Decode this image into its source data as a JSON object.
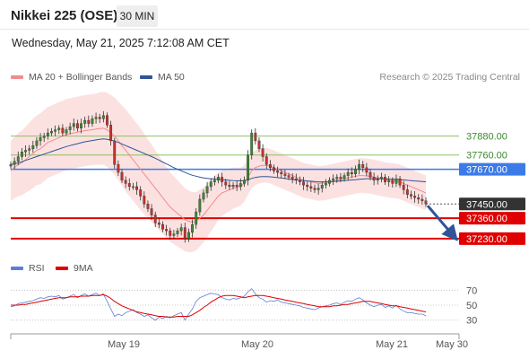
{
  "header": {
    "title": "Nikkei 225 (OSE)",
    "interval": "30 MIN",
    "datetime": "Wednesday, May 21, 2025 7:12:08 AM CET"
  },
  "legend": {
    "ma20_label": "MA 20 + Bollinger Bands",
    "ma20_color": "#f08c8c",
    "ma50_label": "MA 50",
    "ma50_color": "#2f5597",
    "copyright": "Research © 2025 Trading Central"
  },
  "rsi_legend": {
    "rsi_label": "RSI",
    "rsi_color": "#5b7fd6",
    "ma_label": "9MA",
    "ma_color": "#e00000"
  },
  "chart_data": [
    {
      "type": "candlestick",
      "price_range": [
        37150,
        38060
      ],
      "levels": [
        {
          "value": 37880,
          "label": "37880.00",
          "kind": "resistance",
          "color": "#8cc063"
        },
        {
          "value": 37760,
          "label": "37760.00",
          "kind": "resistance",
          "color": "#8cc063"
        },
        {
          "value": 37670,
          "label": "37670.00",
          "kind": "pivot",
          "color": "#3b7be8"
        },
        {
          "value": 37450,
          "label": "37450.00",
          "kind": "last",
          "color": "#333333"
        },
        {
          "value": 37360,
          "label": "37360.00",
          "kind": "support",
          "color": "#e00000"
        },
        {
          "value": 37230,
          "label": "37230.00",
          "kind": "support",
          "color": "#e00000"
        }
      ],
      "close": [
        37700,
        37720,
        37750,
        37780,
        37790,
        37800,
        37820,
        37850,
        37870,
        37880,
        37900,
        37910,
        37920,
        37930,
        37900,
        37920,
        37940,
        37960,
        37930,
        37960,
        37980,
        37960,
        37990,
        38000,
        37990,
        38010,
        37950,
        37850,
        37700,
        37650,
        37600,
        37580,
        37560,
        37560,
        37540,
        37500,
        37450,
        37420,
        37380,
        37330,
        37320,
        37290,
        37280,
        37250,
        37260,
        37280,
        37300,
        37230,
        37270,
        37320,
        37400,
        37480,
        37520,
        37560,
        37590,
        37600,
        37620,
        37590,
        37570,
        37560,
        37570,
        37560,
        37580,
        37600,
        37760,
        37900,
        37850,
        37800,
        37750,
        37700,
        37680,
        37660,
        37650,
        37640,
        37630,
        37620,
        37610,
        37600,
        37590,
        37570,
        37560,
        37550,
        37540,
        37550,
        37570,
        37580,
        37600,
        37610,
        37620,
        37610,
        37630,
        37650,
        37640,
        37670,
        37700,
        37680,
        37650,
        37620,
        37600,
        37610,
        37620,
        37590,
        37600,
        37580,
        37610,
        37570,
        37540,
        37510,
        37500,
        37490,
        37480,
        37470,
        37450
      ],
      "ma20": [
        37660,
        37680,
        37700,
        37710,
        37730,
        37750,
        37770,
        37790,
        37800,
        37820,
        37840,
        37850,
        37860,
        37870,
        37880,
        37890,
        37895,
        37900,
        37905,
        37910,
        37915,
        37918,
        37920,
        37925,
        37928,
        37930,
        37920,
        37900,
        37880,
        37850,
        37820,
        37790,
        37760,
        37730,
        37700,
        37670,
        37640,
        37610,
        37580,
        37550,
        37520,
        37490,
        37460,
        37430,
        37410,
        37390,
        37370,
        37350,
        37340,
        37335,
        37340,
        37360,
        37380,
        37410,
        37440,
        37470,
        37500,
        37520,
        37530,
        37540,
        37550,
        37555,
        37560,
        37580,
        37620,
        37660,
        37680,
        37690,
        37695,
        37695,
        37690,
        37680,
        37670,
        37660,
        37650,
        37640,
        37630,
        37620,
        37610,
        37600,
        37595,
        37590,
        37585,
        37580,
        37582,
        37585,
        37590,
        37595,
        37600,
        37605,
        37610,
        37615,
        37620,
        37625,
        37630,
        37630,
        37628,
        37625,
        37620,
        37615,
        37610,
        37605,
        37600,
        37598,
        37595,
        37590,
        37580,
        37570,
        37560,
        37550,
        37540,
        37530,
        37520
      ],
      "ma50": [
        37700,
        37705,
        37710,
        37718,
        37726,
        37734,
        37742,
        37750,
        37758,
        37766,
        37774,
        37782,
        37790,
        37798,
        37806,
        37814,
        37820,
        37826,
        37832,
        37838,
        37844,
        37848,
        37852,
        37856,
        37860,
        37862,
        37860,
        37855,
        37848,
        37840,
        37830,
        37820,
        37810,
        37800,
        37790,
        37780,
        37770,
        37760,
        37750,
        37740,
        37728,
        37716,
        37704,
        37692,
        37680,
        37670,
        37660,
        37650,
        37640,
        37632,
        37626,
        37620,
        37615,
        37612,
        37610,
        37608,
        37606,
        37604,
        37602,
        37600,
        37598,
        37597,
        37596,
        37598,
        37604,
        37612,
        37618,
        37622,
        37624,
        37624,
        37622,
        37620,
        37617,
        37614,
        37611,
        37608,
        37605,
        37602,
        37600,
        37598,
        37596,
        37594,
        37592,
        37590,
        37590,
        37590,
        37590,
        37592,
        37594,
        37596,
        37598,
        37600,
        37602,
        37604,
        37606,
        37608,
        37610,
        37610,
        37610,
        37610,
        37610,
        37609,
        37608,
        37607,
        37606,
        37604,
        37602,
        37600,
        37598,
        37596,
        37594,
        37592,
        37590
      ],
      "bb_width": [
        190,
        195,
        200,
        205,
        210,
        215,
        220,
        220,
        225,
        225,
        225,
        225,
        225,
        225,
        225,
        225,
        225,
        225,
        225,
        225,
        225,
        225,
        225,
        225,
        230,
        230,
        235,
        240,
        245,
        250,
        255,
        260,
        260,
        260,
        260,
        260,
        255,
        250,
        245,
        240,
        235,
        230,
        225,
        220,
        215,
        210,
        205,
        200,
        195,
        190,
        185,
        180,
        175,
        170,
        165,
        160,
        150,
        145,
        140,
        135,
        130,
        125,
        120,
        115,
        110,
        110,
        110,
        110,
        110,
        110,
        110,
        110,
        110,
        110,
        110,
        110,
        110,
        110,
        110,
        110,
        110,
        110,
        110,
        110,
        110,
        110,
        110,
        110,
        110,
        110,
        110,
        110,
        110,
        110,
        110,
        110,
        110,
        110,
        110,
        110,
        110,
        110,
        110,
        110,
        110,
        110,
        110,
        110,
        110,
        110,
        110,
        110,
        110
      ],
      "projection": {
        "from": 37450,
        "to": 37230
      }
    },
    {
      "type": "line",
      "name": "RSI",
      "ylim": [
        20,
        80
      ],
      "ticks": [
        70,
        50,
        30
      ],
      "series": [
        {
          "name": "RSI",
          "values": [
            48,
            49,
            52,
            53,
            54,
            55,
            56,
            58,
            60,
            59,
            61,
            62,
            61,
            63,
            58,
            60,
            62,
            64,
            60,
            63,
            65,
            62,
            64,
            66,
            63,
            65,
            55,
            45,
            35,
            38,
            36,
            40,
            42,
            44,
            40,
            38,
            35,
            37,
            33,
            30,
            34,
            32,
            35,
            33,
            36,
            38,
            40,
            30,
            38,
            45,
            55,
            60,
            62,
            64,
            66,
            65,
            64,
            60,
            58,
            57,
            59,
            58,
            60,
            62,
            68,
            72,
            65,
            60,
            58,
            54,
            56,
            55,
            57,
            54,
            53,
            52,
            51,
            50,
            49,
            47,
            46,
            45,
            44,
            46,
            48,
            49,
            50,
            52,
            53,
            51,
            54,
            56,
            55,
            58,
            60,
            57,
            53,
            50,
            48,
            50,
            51,
            47,
            49,
            46,
            50,
            45,
            42,
            40,
            40,
            39,
            38,
            38,
            36
          ]
        },
        {
          "name": "9MA",
          "values": [
            50,
            50,
            50,
            51,
            51,
            52,
            53,
            54,
            55,
            56,
            57,
            58,
            59,
            60,
            60,
            60,
            61,
            61,
            61,
            62,
            62,
            62,
            63,
            63,
            63,
            64,
            62,
            59,
            55,
            52,
            49,
            47,
            45,
            43,
            41,
            40,
            39,
            38,
            37,
            36,
            35,
            35,
            34,
            34,
            34,
            35,
            35,
            35,
            35,
            37,
            40,
            43,
            47,
            50,
            54,
            57,
            60,
            62,
            63,
            63,
            63,
            62,
            61,
            60,
            61,
            62,
            63,
            63,
            63,
            62,
            61,
            60,
            59,
            58,
            57,
            56,
            55,
            54,
            53,
            52,
            51,
            50,
            49,
            48,
            48,
            48,
            48,
            49,
            49,
            50,
            51,
            51,
            52,
            53,
            54,
            55,
            55,
            55,
            54,
            53,
            52,
            51,
            50,
            49,
            49,
            48,
            47,
            46,
            45,
            44,
            43,
            42,
            41
          ]
        }
      ]
    }
  ],
  "x_axis": {
    "labels": [
      "May 19",
      "May 20",
      "May 21",
      "May 30"
    ]
  }
}
